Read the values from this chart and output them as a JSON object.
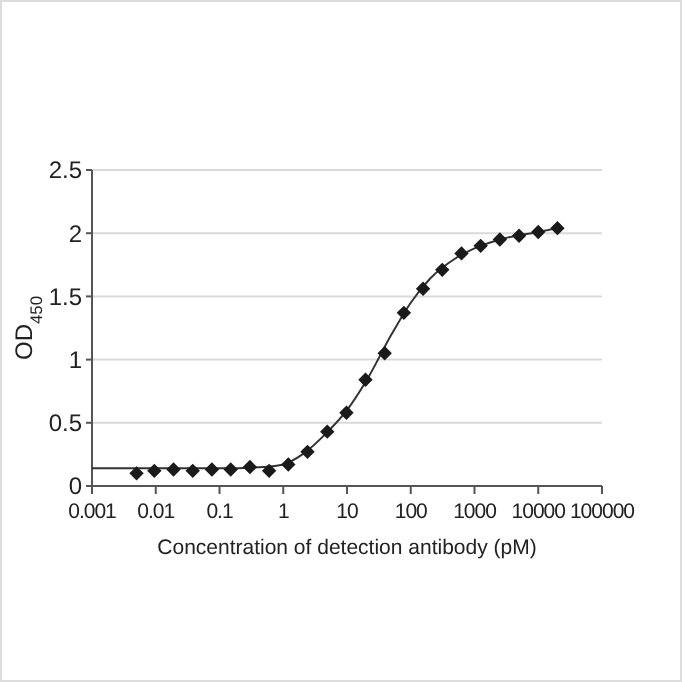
{
  "chart_data": {
    "type": "scatter",
    "xlabel": "Concentration of detection antibody (pM)",
    "ylabel": "OD$_{450}$",
    "log": "x",
    "xlim": [
      0.001,
      100000
    ],
    "xticks": [
      {
        "value": 0.001,
        "label": "0.001"
      },
      {
        "value": 0.01,
        "label": "0.01"
      },
      {
        "value": 0.1,
        "label": "0.1"
      },
      1,
      10,
      100,
      1000,
      10000,
      100000
    ],
    "ylim": [
      0,
      2.5
    ],
    "yticks": [
      0,
      0.5,
      1,
      1.5,
      2,
      2.5
    ],
    "grid": "y",
    "series": [
      {
        "type": "line",
        "color": "#333333",
        "marker": "none",
        "line_style": "solid",
        "x": [
          0.001,
          0.1,
          0.5,
          1,
          2,
          5,
          10,
          20,
          50,
          100,
          200,
          500,
          1000,
          3000,
          10000,
          20000
        ],
        "values": [
          0.14,
          0.14,
          0.15,
          0.17,
          0.25,
          0.43,
          0.6,
          0.83,
          1.2,
          1.45,
          1.64,
          1.8,
          1.88,
          1.96,
          2.01,
          2.04
        ]
      },
      {
        "color": "#1a1a1a",
        "marker": "diamond",
        "x": [
          0.005,
          0.0095,
          0.019,
          0.038,
          0.076,
          0.15,
          0.3,
          0.6,
          1.2,
          2.4,
          4.9,
          9.8,
          19.5,
          39,
          78,
          156,
          312,
          625,
          1250,
          2500,
          5000,
          10000,
          20000
        ],
        "values": [
          0.1,
          0.12,
          0.13,
          0.12,
          0.13,
          0.13,
          0.15,
          0.12,
          0.17,
          0.27,
          0.43,
          0.58,
          0.84,
          1.05,
          1.37,
          1.56,
          1.71,
          1.84,
          1.9,
          1.95,
          1.98,
          2.01,
          2.04
        ]
      }
    ]
  }
}
